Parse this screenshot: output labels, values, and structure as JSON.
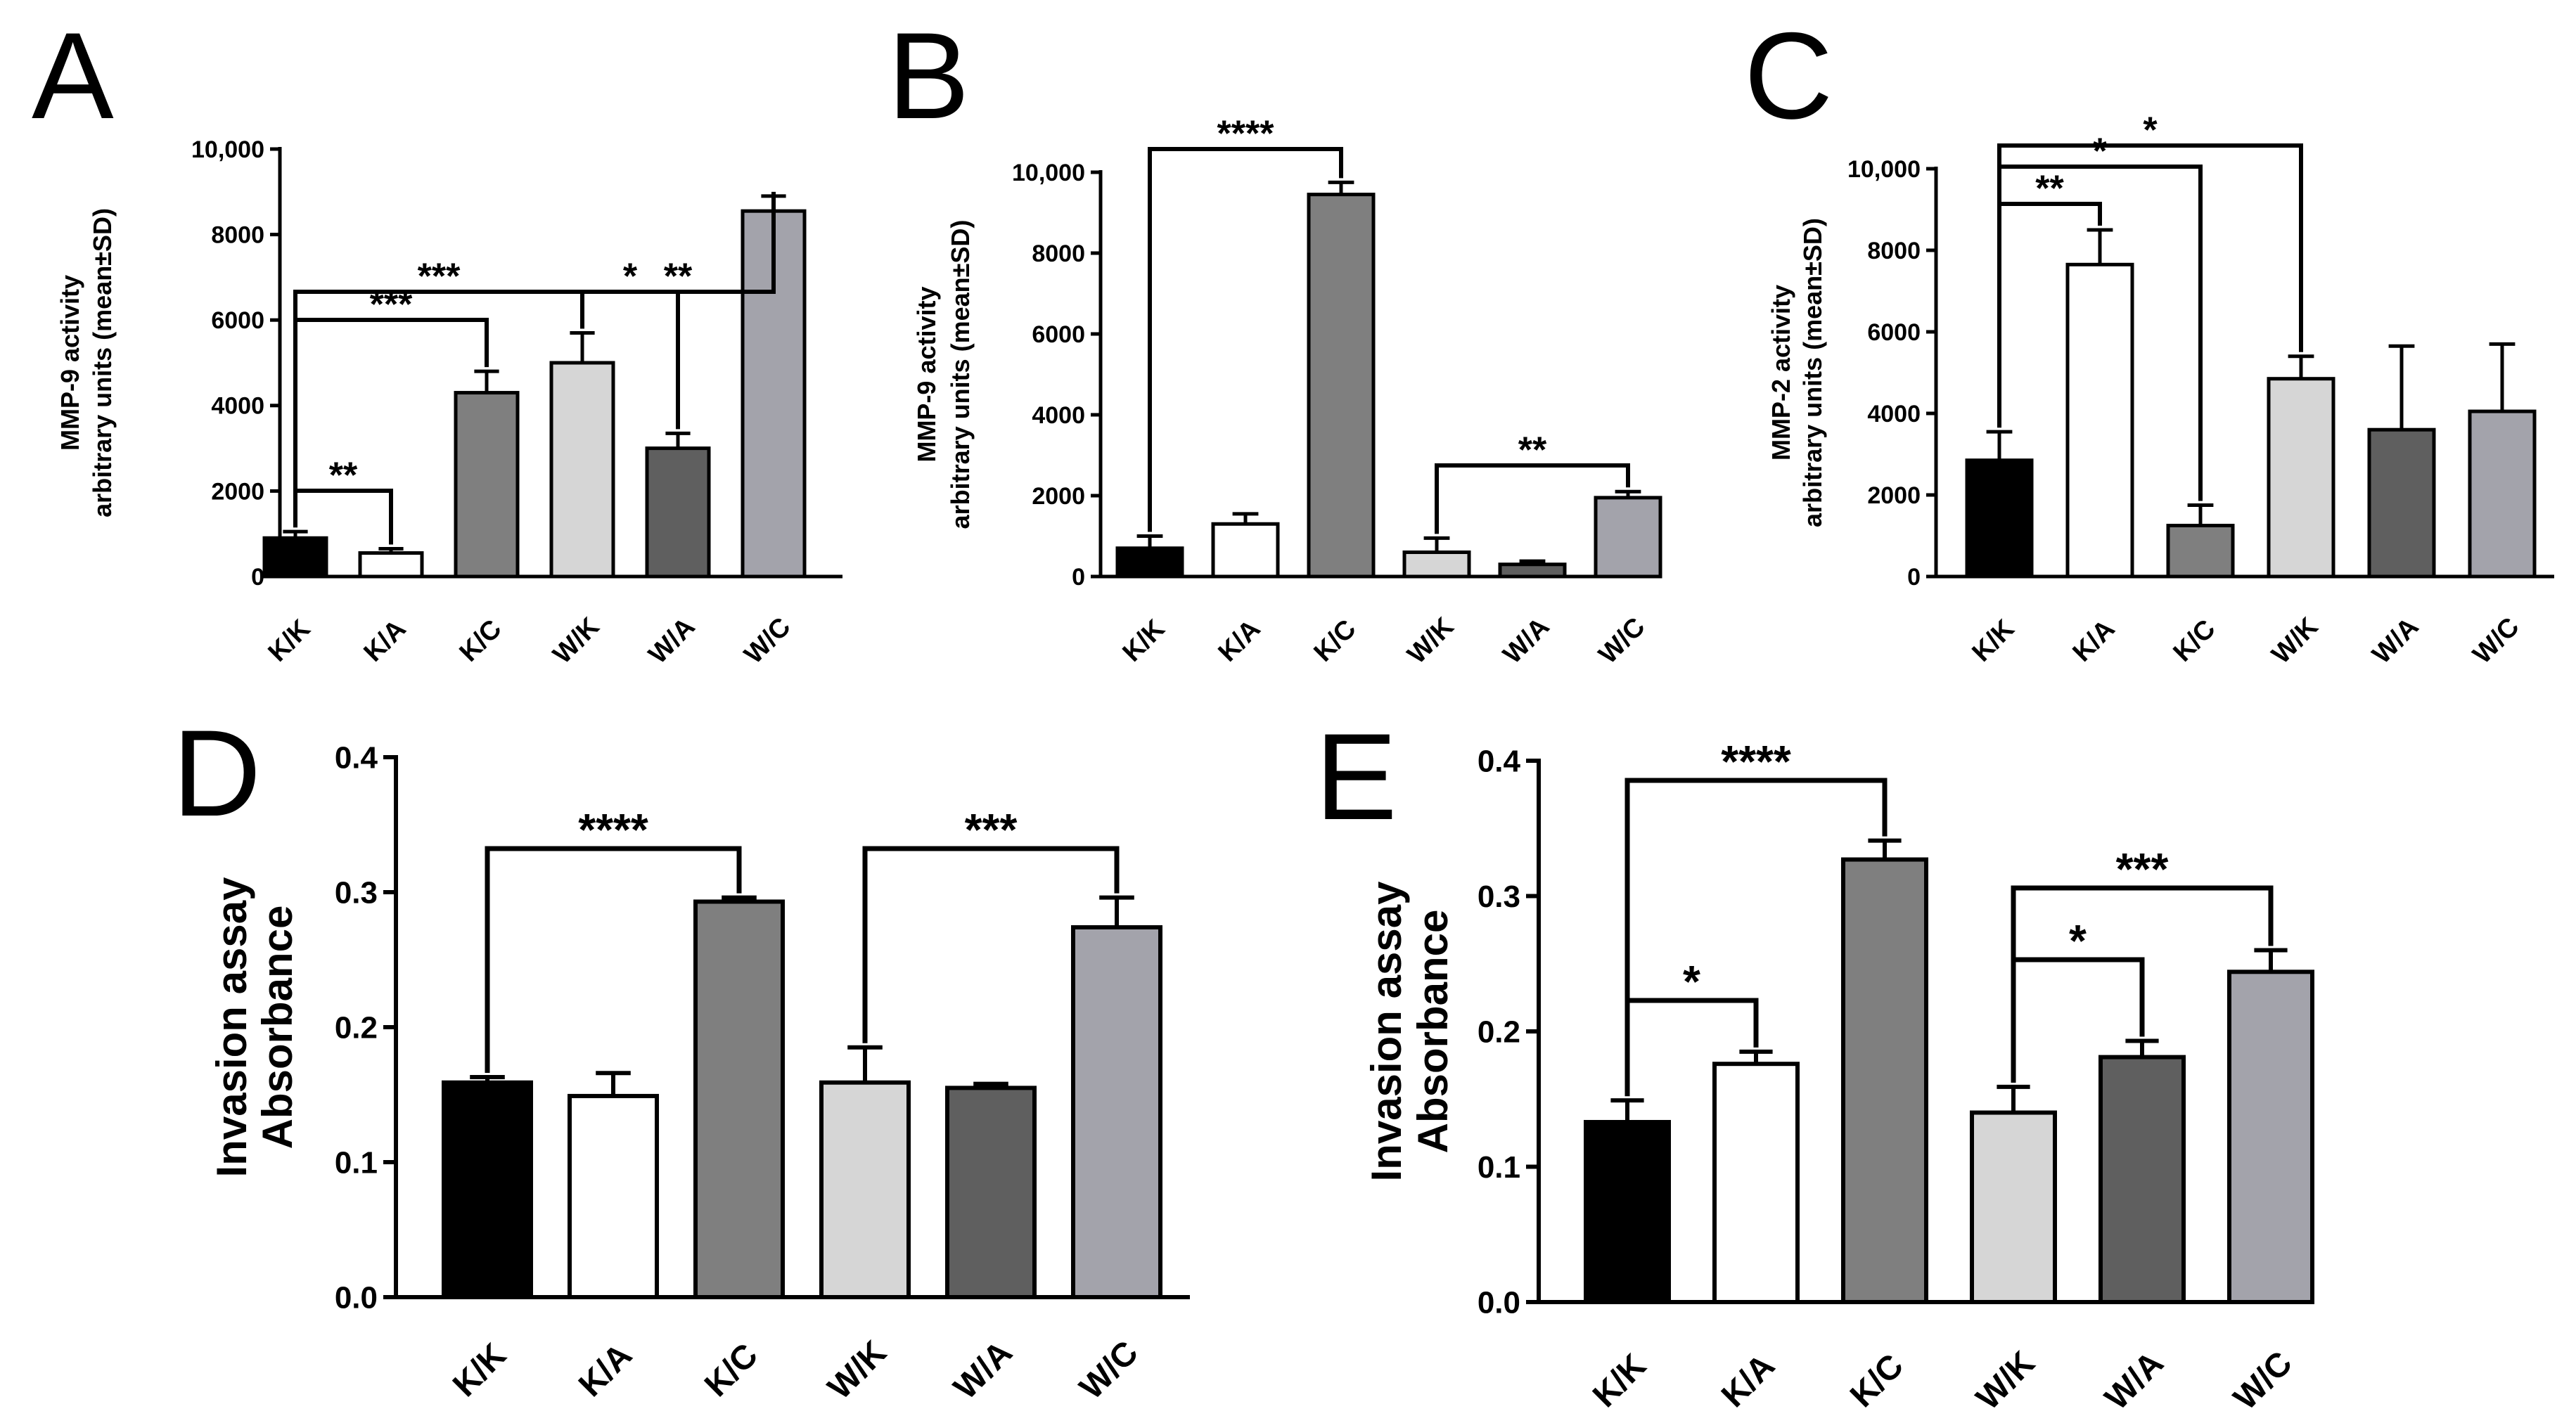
{
  "colors": {
    "K/K": "#000000",
    "K/A": "#ffffff",
    "K/C": "#7f7f7f",
    "W/K": "#d6d6d6",
    "W/A": "#5f5f5f",
    "W/C": "#a3a3ab",
    "stroke": "#000000"
  },
  "chart_data": [
    {
      "panel": "A",
      "type": "bar",
      "categories": [
        "K/K",
        "K/A",
        "K/C",
        "W/K",
        "W/A",
        "W/C"
      ],
      "values": [
        900,
        550,
        4300,
        5000,
        3000,
        8550
      ],
      "errors": [
        150,
        100,
        500,
        700,
        350,
        350
      ],
      "ylabel_lines": [
        "MMP-9 activity",
        "arbitrary units (mean±SD)"
      ],
      "ylim": [
        0,
        10000
      ],
      "yticks": [
        0,
        2000,
        4000,
        6000,
        8000,
        10000
      ],
      "ytick_labels": [
        "0",
        "2000",
        "4000",
        "6000",
        "8000",
        "10,000"
      ],
      "significance": [
        {
          "from": 0,
          "to": 1,
          "label": "**"
        },
        {
          "from": 0,
          "to": 2,
          "label": "***"
        },
        {
          "from": 0,
          "to": 3,
          "label": "***"
        },
        {
          "from": 3,
          "to": 4,
          "label": "*"
        },
        {
          "from": 3,
          "to": 5,
          "label": "**"
        }
      ]
    },
    {
      "panel": "B",
      "type": "bar",
      "categories": [
        "K/K",
        "K/A",
        "K/C",
        "W/K",
        "W/A",
        "W/C"
      ],
      "values": [
        700,
        1300,
        9450,
        600,
        300,
        1950
      ],
      "errors": [
        300,
        250,
        300,
        350,
        80,
        150
      ],
      "ylabel_lines": [
        "MMP-9 activity",
        "arbitrary units (mean±SD)"
      ],
      "ylim": [
        0,
        10000
      ],
      "yticks": [
        0,
        2000,
        4000,
        6000,
        8000,
        10000
      ],
      "ytick_labels": [
        "0",
        "2000",
        "4000",
        "6000",
        "8000",
        "10,000"
      ],
      "significance": [
        {
          "from": 0,
          "to": 2,
          "label": "****"
        },
        {
          "from": 3,
          "to": 5,
          "label": "**"
        }
      ]
    },
    {
      "panel": "C",
      "type": "bar",
      "categories": [
        "K/K",
        "K/A",
        "K/C",
        "W/K",
        "W/A",
        "W/C"
      ],
      "values": [
        2850,
        7650,
        1250,
        4850,
        3600,
        4050
      ],
      "errors": [
        700,
        850,
        500,
        550,
        2050,
        1650
      ],
      "ylabel_lines": [
        "MMP-2 activity",
        "arbitrary units (mean±SD)"
      ],
      "ylim": [
        0,
        10000
      ],
      "yticks": [
        0,
        2000,
        4000,
        6000,
        8000,
        10000
      ],
      "ytick_labels": [
        "0",
        "2000",
        "4000",
        "6000",
        "8000",
        "10,000"
      ],
      "significance": [
        {
          "from": 0,
          "to": 1,
          "label": "**"
        },
        {
          "from": 0,
          "to": 2,
          "label": "*"
        },
        {
          "from": 0,
          "to": 3,
          "label": "*"
        }
      ]
    },
    {
      "panel": "D",
      "type": "bar",
      "categories": [
        "K/K",
        "K/A",
        "K/C",
        "W/K",
        "W/A",
        "W/C"
      ],
      "values": [
        0.159,
        0.149,
        0.293,
        0.159,
        0.155,
        0.274
      ],
      "errors": [
        0.004,
        0.017,
        0.003,
        0.026,
        0.003,
        0.022
      ],
      "ylabel_lines": [
        "Invasion assay",
        "Absorbance"
      ],
      "ylim": [
        0,
        0.4
      ],
      "yticks": [
        0,
        0.1,
        0.2,
        0.3,
        0.4
      ],
      "ytick_labels": [
        "0.0",
        "0.1",
        "0.2",
        "0.3",
        "0.4"
      ],
      "significance": [
        {
          "from": 0,
          "to": 2,
          "label": "****"
        },
        {
          "from": 3,
          "to": 5,
          "label": "***"
        }
      ]
    },
    {
      "panel": "E",
      "type": "bar",
      "categories": [
        "K/K",
        "K/A",
        "K/C",
        "W/K",
        "W/A",
        "W/C"
      ],
      "values": [
        0.133,
        0.176,
        0.327,
        0.14,
        0.181,
        0.244
      ],
      "errors": [
        0.016,
        0.009,
        0.014,
        0.019,
        0.012,
        0.016
      ],
      "ylabel_lines": [
        "Invasion assay",
        "Absorbance"
      ],
      "ylim": [
        0,
        0.4
      ],
      "yticks": [
        0,
        0.1,
        0.2,
        0.3,
        0.4
      ],
      "ytick_labels": [
        "0.0",
        "0.1",
        "0.2",
        "0.3",
        "0.4"
      ],
      "significance": [
        {
          "from": 0,
          "to": 1,
          "label": "*"
        },
        {
          "from": 0,
          "to": 2,
          "label": "****"
        },
        {
          "from": 3,
          "to": 4,
          "label": "*"
        },
        {
          "from": 3,
          "to": 5,
          "label": "***"
        }
      ]
    }
  ]
}
